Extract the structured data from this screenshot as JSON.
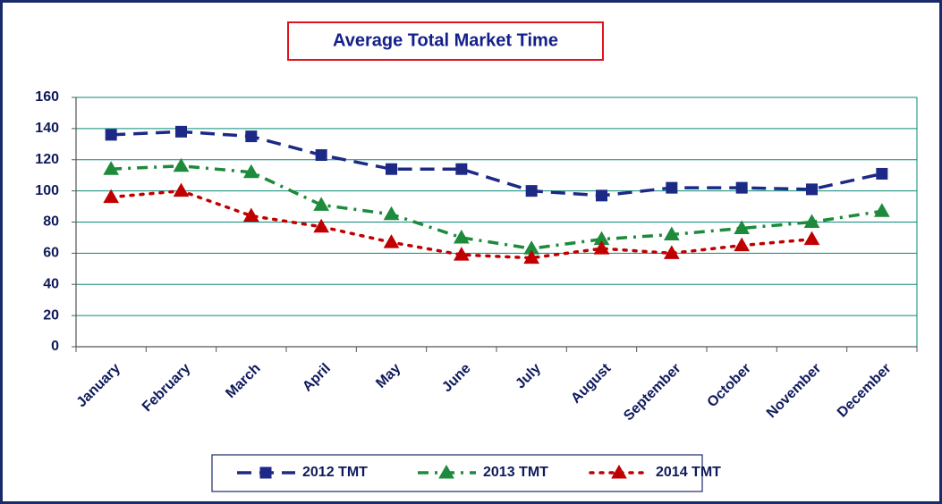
{
  "chart_data": {
    "type": "line",
    "title": "Average Total Market Time",
    "categories": [
      "January",
      "February",
      "March",
      "April",
      "May",
      "June",
      "July",
      "August",
      "September",
      "October",
      "November",
      "December"
    ],
    "series": [
      {
        "name": "2012 TMT",
        "color": "#1c2a86",
        "marker": "square",
        "line_style": "dash",
        "values": [
          136,
          138,
          135,
          123,
          114,
          114,
          100,
          97,
          102,
          102,
          101,
          111
        ]
      },
      {
        "name": "2013 TMT",
        "color": "#1e8a3c",
        "marker": "triangle",
        "line_style": "dashdot",
        "values": [
          114,
          116,
          112,
          91,
          85,
          70,
          63,
          69,
          72,
          76,
          80,
          87
        ]
      },
      {
        "name": "2014 TMT",
        "color": "#c00000",
        "marker": "triangle",
        "line_style": "dot",
        "values": [
          96,
          100,
          84,
          77,
          67,
          59,
          57,
          63,
          60,
          65,
          69,
          null
        ]
      }
    ],
    "ylim": [
      0,
      160
    ],
    "yticks": [
      0,
      20,
      40,
      60,
      80,
      100,
      120,
      140,
      160
    ],
    "grid": true,
    "legend": "bottom"
  }
}
